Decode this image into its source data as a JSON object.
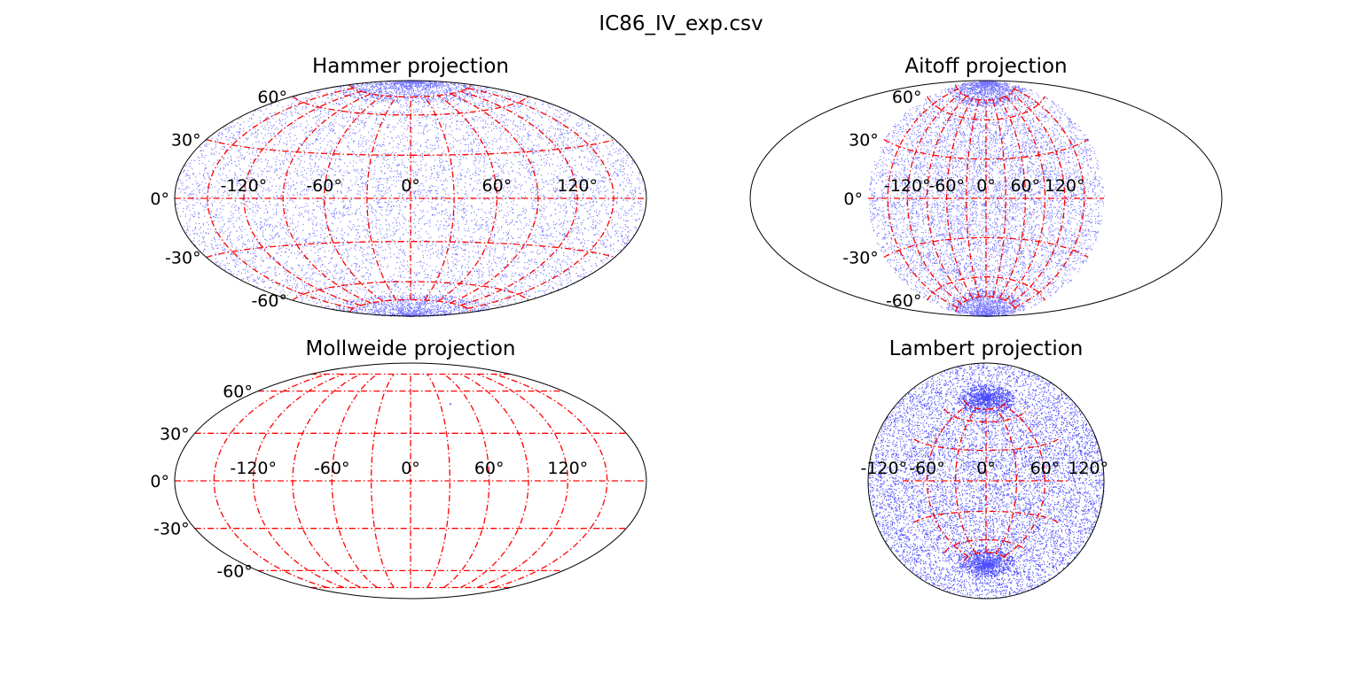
{
  "figure": {
    "suptitle": "IC86_IV_exp.csv"
  },
  "colors": {
    "points": "#0000ff",
    "grid": "#ff0000",
    "frame": "#000000"
  },
  "chart_data": [
    {
      "type": "scatter",
      "projection": "hammer",
      "title": "Hammer projection",
      "x_ticks": [
        "-120°",
        "-60°",
        "0°",
        "60°",
        "120°"
      ],
      "y_ticks": [
        "60°",
        "30°",
        "0°",
        "-30°",
        "-60°"
      ],
      "x_tick_values": [
        -120,
        -60,
        0,
        60,
        120
      ],
      "y_tick_values": [
        60,
        30,
        0,
        -30,
        -60
      ],
      "xlim": [
        -180,
        180
      ],
      "ylim": [
        -90,
        90
      ],
      "grid": true,
      "grid_style": "dash-dot",
      "points": "dense uniform full-sky distribution, denser near poles"
    },
    {
      "type": "scatter",
      "projection": "aitoff",
      "title": "Aitoff projection",
      "x_ticks": [
        "-120°",
        "-60°",
        "0°",
        "60°",
        "120°"
      ],
      "y_ticks": [
        "60°",
        "30°",
        "0°",
        "-30°",
        "-60°"
      ],
      "x_tick_values": [
        -120,
        -60,
        0,
        60,
        120
      ],
      "y_tick_values": [
        60,
        30,
        0,
        -30,
        -60
      ],
      "xlim": [
        -180,
        180
      ],
      "ylim": [
        -90,
        90
      ],
      "grid": true,
      "grid_style": "dash-dot",
      "points": "dense uniform full-sky distribution, denser near poles"
    },
    {
      "type": "scatter",
      "projection": "mollweide",
      "title": "Mollweide projection",
      "x_ticks": [
        "-120°",
        "-60°",
        "0°",
        "60°",
        "120°"
      ],
      "y_ticks": [
        "60°",
        "30°",
        "0°",
        "-30°",
        "-60°"
      ],
      "x_tick_values": [
        -120,
        -60,
        0,
        60,
        120
      ],
      "y_tick_values": [
        60,
        30,
        0,
        -30,
        -60
      ],
      "xlim": [
        -180,
        180
      ],
      "ylim": [
        -90,
        90
      ],
      "grid": true,
      "grid_style": "dash-dot",
      "points_sparse": [
        {
          "lon": 40,
          "lat": 50
        },
        {
          "lon": 0,
          "lat": 30
        },
        {
          "lon": 0,
          "lat": 0
        }
      ]
    },
    {
      "type": "scatter",
      "projection": "lambert",
      "title": "Lambert projection",
      "x_ticks": [
        "-120°",
        "-60°",
        "0°",
        "60°",
        "120°"
      ],
      "x_tick_values": [
        -120,
        -60,
        0,
        60,
        120
      ],
      "grid": true,
      "grid_style": "dash-dot",
      "points": "dense full-disk distribution"
    }
  ]
}
